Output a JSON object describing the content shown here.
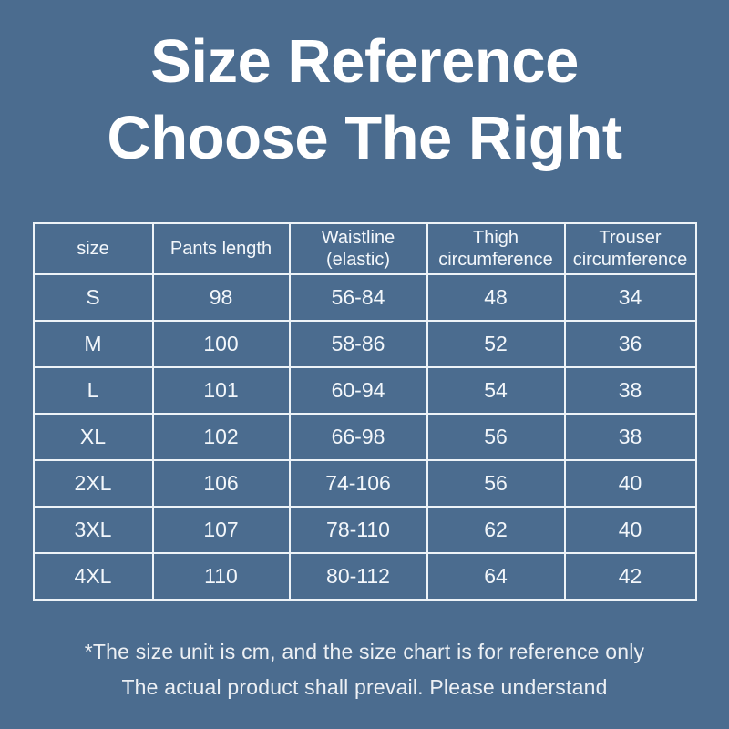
{
  "page": {
    "background_color": "#4b6c8f",
    "text_color": "#ffffff",
    "border_color": "#edf3f8"
  },
  "title": {
    "line1": "Size Reference",
    "line2": "Choose The Right"
  },
  "table_header": [
    {
      "line1": "size",
      "line2": ""
    },
    {
      "line1": "Pants length",
      "line2": ""
    },
    {
      "line1": "Waistline",
      "line2": "(elastic)"
    },
    {
      "line1": "Thigh",
      "line2": "circumference"
    },
    {
      "line1": "Trouser",
      "line2": "circumference"
    }
  ],
  "chart_data": {
    "type": "table",
    "title": "Size Reference Choose The Right",
    "unit": "cm",
    "columns": [
      "size",
      "Pants length",
      "Waistline (elastic)",
      "Thigh circumference",
      "Trouser circumference"
    ],
    "rows": [
      [
        "S",
        "98",
        "56-84",
        "48",
        "34"
      ],
      [
        "M",
        "100",
        "58-86",
        "52",
        "36"
      ],
      [
        "L",
        "101",
        "60-94",
        "54",
        "38"
      ],
      [
        "XL",
        "102",
        "66-98",
        "56",
        "38"
      ],
      [
        "2XL",
        "106",
        "74-106",
        "56",
        "40"
      ],
      [
        "3XL",
        "107",
        "78-110",
        "62",
        "40"
      ],
      [
        "4XL",
        "110",
        "80-112",
        "64",
        "42"
      ]
    ]
  },
  "footnote": {
    "line1": "*The size unit is cm, and the size chart is for reference only",
    "line2": "The actual product shall prevail. Please understand"
  }
}
